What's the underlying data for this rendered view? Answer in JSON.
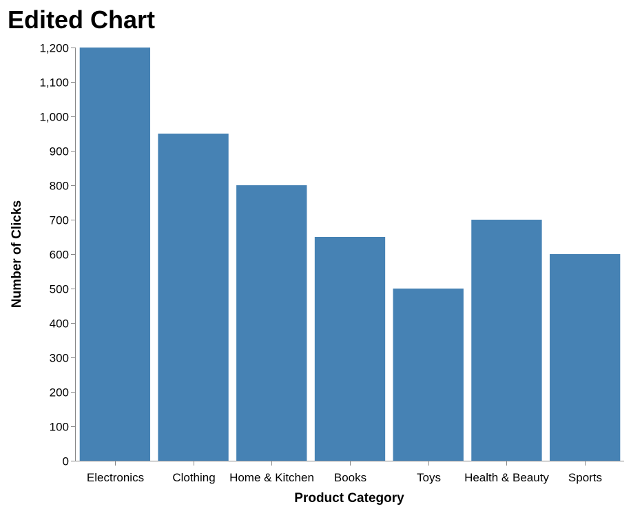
{
  "chart_data": {
    "type": "bar",
    "title": "Edited Chart",
    "xlabel": "Product Category",
    "ylabel": "Number of Clicks",
    "categories": [
      "Electronics",
      "Clothing",
      "Home & Kitchen",
      "Books",
      "Toys",
      "Health & Beauty",
      "Sports"
    ],
    "values": [
      1200,
      950,
      800,
      650,
      500,
      700,
      600
    ],
    "ylim": [
      0,
      1200
    ],
    "yticks": [
      0,
      100,
      200,
      300,
      400,
      500,
      600,
      700,
      800,
      900,
      1000,
      1100,
      1200
    ],
    "ytick_labels": [
      "0",
      "100",
      "200",
      "300",
      "400",
      "500",
      "600",
      "700",
      "800",
      "900",
      "1,000",
      "1,100",
      "1,200"
    ],
    "grid": false,
    "bar_color": "#4682b4"
  }
}
